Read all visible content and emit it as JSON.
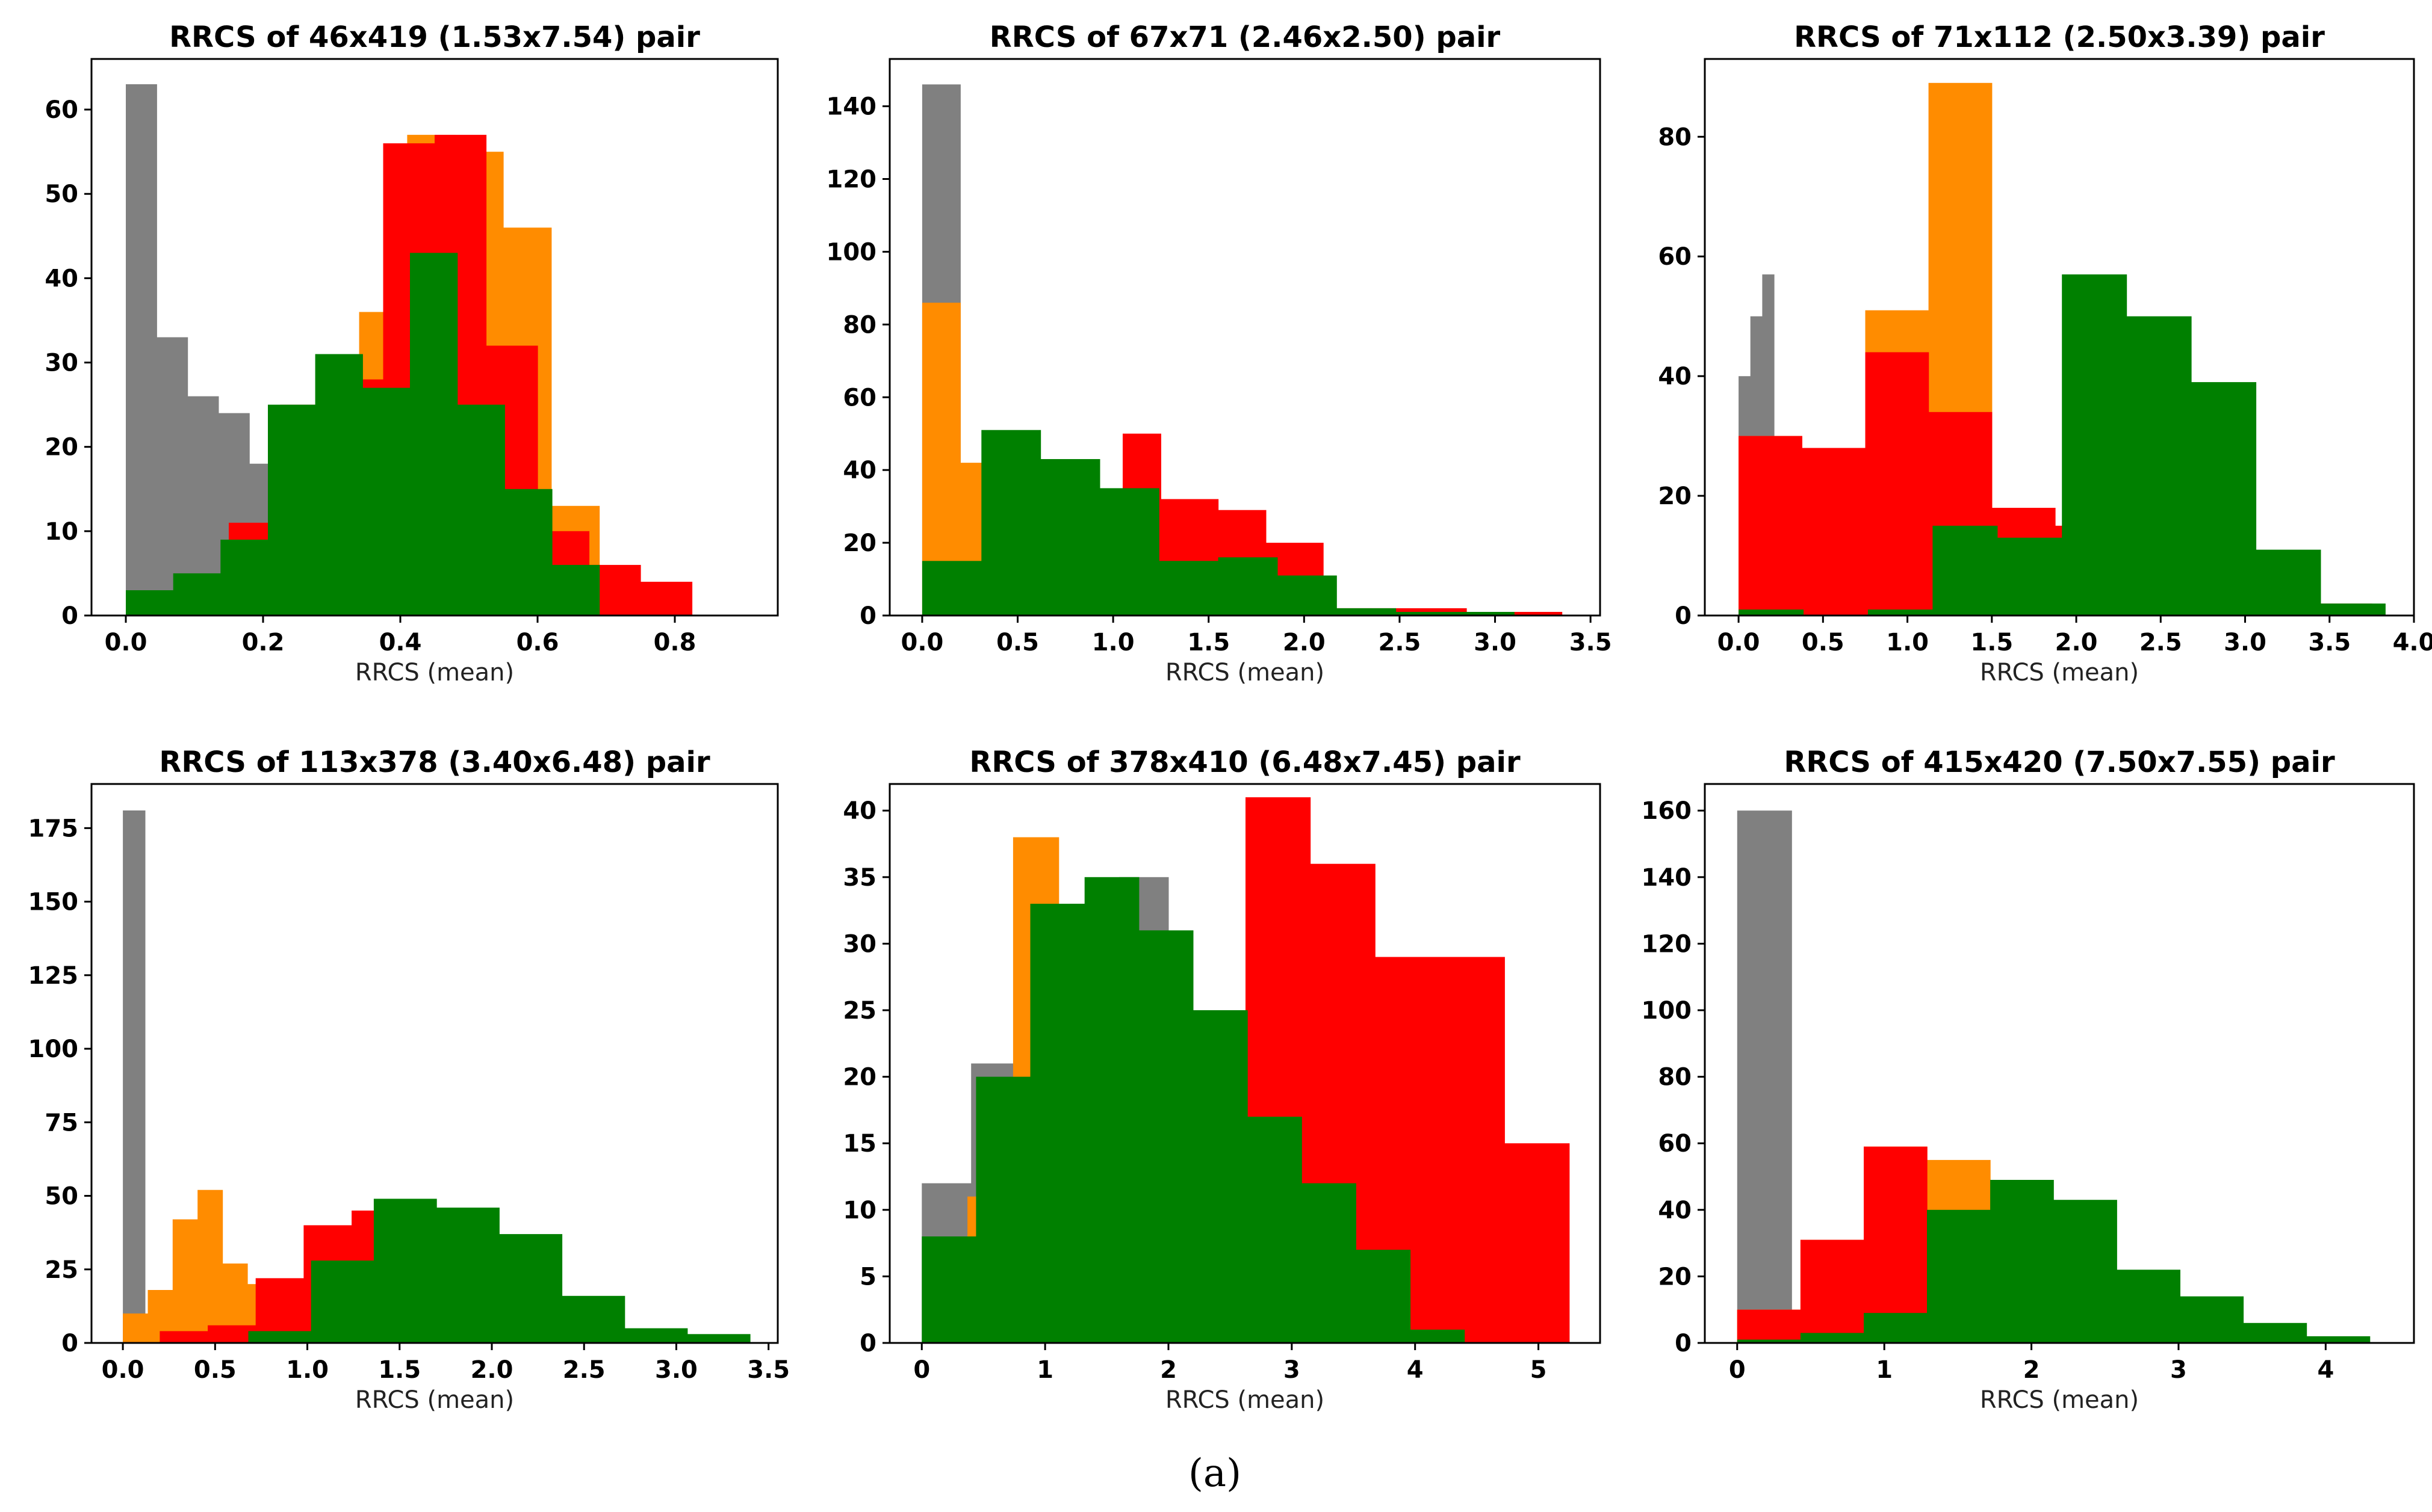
{
  "figure_caption": "(a)",
  "colors": {
    "gray": "#808080",
    "orange": "#ff8c00",
    "red": "#ff0000",
    "green": "#008000"
  },
  "chart_data": [
    {
      "type": "bar",
      "title": "RRCS of 46x419 (1.53x7.54) pair",
      "xlabel": "RRCS (mean)",
      "ylabel": "",
      "xlim": [
        -0.05,
        0.95
      ],
      "ylim": [
        0,
        66
      ],
      "xticks": [
        0.0,
        0.2,
        0.4,
        0.6,
        0.8
      ],
      "xtick_labels": [
        "0.0",
        "0.2",
        "0.4",
        "0.6",
        "0.8"
      ],
      "yticks": [
        0,
        10,
        20,
        30,
        40,
        50,
        60
      ],
      "ytick_labels": [
        "0",
        "10",
        "20",
        "30",
        "40",
        "50",
        "60"
      ],
      "series": [
        {
          "name": "gray",
          "color_key": "gray",
          "edges": [
            0.0,
            0.045,
            0.09,
            0.135,
            0.18,
            0.225,
            0.27,
            0.315,
            0.36,
            0.405,
            0.45
          ],
          "values": [
            63,
            33,
            26,
            24,
            18,
            10,
            5,
            3,
            1,
            0
          ]
        },
        {
          "name": "orange",
          "color_key": "orange",
          "edges": [
            0.2,
            0.27,
            0.34,
            0.41,
            0.48,
            0.55,
            0.62,
            0.69
          ],
          "values": [
            2,
            15,
            36,
            57,
            55,
            46,
            13
          ]
        },
        {
          "name": "red",
          "color_key": "red",
          "edges": [
            0.15,
            0.225,
            0.3,
            0.375,
            0.45,
            0.525,
            0.6,
            0.675,
            0.75,
            0.825,
            0.9
          ],
          "values": [
            11,
            25,
            28,
            56,
            57,
            32,
            10,
            6,
            4,
            0
          ]
        },
        {
          "name": "green",
          "color_key": "green",
          "edges": [
            0.0,
            0.069,
            0.138,
            0.207,
            0.276,
            0.345,
            0.414,
            0.483,
            0.552,
            0.621,
            0.69
          ],
          "values": [
            3,
            5,
            9,
            25,
            31,
            27,
            43,
            25,
            15,
            6
          ]
        }
      ]
    },
    {
      "type": "bar",
      "title": "RRCS of 67x71 (2.46x2.50) pair",
      "xlabel": "RRCS (mean)",
      "ylabel": "",
      "xlim": [
        -0.17,
        3.55
      ],
      "ylim": [
        0,
        153
      ],
      "xticks": [
        0.0,
        0.5,
        1.0,
        1.5,
        2.0,
        2.5,
        3.0,
        3.5
      ],
      "xtick_labels": [
        "0.0",
        "0.5",
        "1.0",
        "1.5",
        "2.0",
        "2.5",
        "3.0",
        "3.5"
      ],
      "yticks": [
        0,
        20,
        40,
        60,
        80,
        100,
        120,
        140
      ],
      "ytick_labels": [
        "0",
        "20",
        "40",
        "60",
        "80",
        "100",
        "120",
        "140"
      ],
      "series": [
        {
          "name": "gray",
          "color_key": "gray",
          "edges": [
            0.0,
            0.2,
            0.4,
            0.6
          ],
          "values": [
            146,
            1,
            0
          ]
        },
        {
          "name": "orange",
          "color_key": "orange",
          "edges": [
            0.0,
            0.2,
            0.4,
            0.6,
            0.8,
            1.0
          ],
          "values": [
            86,
            42,
            4,
            2,
            0
          ]
        },
        {
          "name": "red",
          "color_key": "red",
          "edges": [
            0.0,
            0.1,
            0.55,
            0.85,
            1.05,
            1.25,
            1.55,
            1.8,
            2.1,
            2.35,
            2.85,
            3.35
          ],
          "values": [
            0,
            0,
            0,
            0,
            50,
            32,
            29,
            20,
            2,
            2,
            1
          ]
        },
        {
          "name": "green",
          "color_key": "green",
          "edges": [
            0.0,
            0.31,
            0.62,
            0.93,
            1.24,
            1.55,
            1.86,
            2.17,
            2.48,
            2.79,
            3.1
          ],
          "values": [
            15,
            51,
            43,
            35,
            15,
            16,
            11,
            2,
            1,
            1
          ]
        }
      ]
    },
    {
      "type": "bar",
      "title": "RRCS of 71x112 (2.50x3.39) pair",
      "xlabel": "RRCS (mean)",
      "ylabel": "",
      "xlim": [
        -0.2,
        4.0
      ],
      "ylim": [
        0,
        93
      ],
      "xticks": [
        0.0,
        0.5,
        1.0,
        1.5,
        2.0,
        2.5,
        3.0,
        3.5,
        4.0
      ],
      "xtick_labels": [
        "0.0",
        "0.5",
        "1.0",
        "1.5",
        "2.0",
        "2.5",
        "3.0",
        "3.5",
        "4.0"
      ],
      "yticks": [
        0,
        20,
        40,
        60,
        80
      ],
      "ytick_labels": [
        "0",
        "20",
        "40",
        "60",
        "80"
      ],
      "series": [
        {
          "name": "gray",
          "color_key": "gray",
          "edges": [
            0.0,
            0.07,
            0.14,
            0.21
          ],
          "values": [
            40,
            50,
            57
          ]
        },
        {
          "name": "orange",
          "color_key": "orange",
          "edges": [
            0.0,
            0.375,
            0.75,
            1.125,
            1.5,
            1.875
          ],
          "values": [
            30,
            28,
            51,
            89,
            15
          ]
        },
        {
          "name": "red",
          "color_key": "red",
          "edges": [
            0.0,
            0.375,
            0.75,
            1.125,
            1.5,
            1.875,
            2.25,
            2.625,
            3.0,
            3.375,
            3.75
          ],
          "values": [
            30,
            28,
            44,
            34,
            18,
            15,
            0,
            0,
            2,
            2
          ]
        },
        {
          "name": "green",
          "color_key": "green",
          "edges": [
            0.0,
            0.383,
            0.766,
            1.149,
            1.532,
            1.915,
            2.298,
            2.681,
            3.064,
            3.447,
            3.83
          ],
          "values": [
            1,
            0,
            1,
            15,
            13,
            57,
            50,
            39,
            11,
            2
          ]
        }
      ]
    },
    {
      "type": "bar",
      "title": "RRCS of 113x378 (3.40x6.48) pair",
      "xlabel": "RRCS (mean)",
      "ylabel": "",
      "xlim": [
        -0.17,
        3.55
      ],
      "ylim": [
        0,
        190
      ],
      "xticks": [
        0.0,
        0.5,
        1.0,
        1.5,
        2.0,
        2.5,
        3.0,
        3.5
      ],
      "xtick_labels": [
        "0.0",
        "0.5",
        "1.0",
        "1.5",
        "2.0",
        "2.5",
        "3.0",
        "3.5"
      ],
      "yticks": [
        0,
        25,
        50,
        75,
        100,
        125,
        150,
        175
      ],
      "ytick_labels": [
        "0",
        "25",
        "50",
        "75",
        "100",
        "125",
        "150",
        "175"
      ],
      "series": [
        {
          "name": "gray",
          "color_key": "gray",
          "edges": [
            0.0,
            0.12,
            0.24
          ],
          "values": [
            181,
            0
          ]
        },
        {
          "name": "orange",
          "color_key": "orange",
          "edges": [
            0.0,
            0.135,
            0.27,
            0.405,
            0.54,
            0.675,
            0.81,
            0.945
          ],
          "values": [
            10,
            18,
            42,
            52,
            27,
            20,
            0
          ]
        },
        {
          "name": "red",
          "color_key": "red",
          "edges": [
            0.2,
            0.46,
            0.72,
            0.98,
            1.24,
            1.5
          ],
          "values": [
            4,
            6,
            22,
            40,
            45
          ]
        },
        {
          "name": "green",
          "color_key": "green",
          "edges": [
            0.0,
            0.34,
            0.68,
            1.02,
            1.36,
            1.7,
            2.04,
            2.38,
            2.72,
            3.06,
            3.4
          ],
          "values": [
            0,
            0,
            4,
            28,
            49,
            46,
            37,
            16,
            5,
            3
          ]
        }
      ]
    },
    {
      "type": "bar",
      "title": "RRCS of 378x410 (6.48x7.45) pair",
      "xlabel": "RRCS (mean)",
      "ylabel": "",
      "xlim": [
        -0.26,
        5.5
      ],
      "ylim": [
        0,
        42
      ],
      "xticks": [
        0,
        1,
        2,
        3,
        4,
        5
      ],
      "xtick_labels": [
        "0",
        "1",
        "2",
        "3",
        "4",
        "5"
      ],
      "yticks": [
        0,
        5,
        10,
        15,
        20,
        25,
        30,
        35,
        40
      ],
      "ytick_labels": [
        "0",
        "5",
        "10",
        "15",
        "20",
        "25",
        "30",
        "35",
        "40"
      ],
      "series": [
        {
          "name": "gray",
          "color_key": "gray",
          "edges": [
            0.0,
            0.4,
            0.8,
            1.2,
            1.6,
            2.0
          ],
          "values": [
            12,
            21,
            20,
            33,
            35
          ]
        },
        {
          "name": "orange",
          "color_key": "orange",
          "edges": [
            0.0,
            0.37,
            0.74,
            1.11
          ],
          "values": [
            0,
            11,
            38
          ]
        },
        {
          "name": "red",
          "color_key": "red",
          "edges": [
            0.0,
            0.525,
            1.05,
            1.575,
            2.1,
            2.625,
            3.15,
            3.675,
            4.2,
            4.725,
            5.25
          ],
          "values": [
            0,
            0,
            0,
            0,
            0,
            41,
            36,
            29,
            29,
            15
          ]
        },
        {
          "name": "green",
          "color_key": "green",
          "edges": [
            0.0,
            0.44,
            0.88,
            1.32,
            1.76,
            2.2,
            2.64,
            3.08,
            3.52,
            3.96,
            4.4
          ],
          "values": [
            8,
            20,
            33,
            35,
            31,
            25,
            17,
            12,
            7,
            1
          ]
        }
      ]
    },
    {
      "type": "bar",
      "title": "RRCS of 415x420 (7.50x7.55) pair",
      "xlabel": "RRCS (mean)",
      "ylabel": "",
      "xlim": [
        -0.22,
        4.6
      ],
      "ylim": [
        0,
        168
      ],
      "xticks": [
        0,
        1,
        2,
        3,
        4
      ],
      "xtick_labels": [
        "0",
        "1",
        "2",
        "3",
        "4"
      ],
      "yticks": [
        0,
        20,
        40,
        60,
        80,
        100,
        120,
        140,
        160
      ],
      "ytick_labels": [
        "0",
        "20",
        "40",
        "60",
        "80",
        "100",
        "120",
        "140",
        "160"
      ],
      "series": [
        {
          "name": "gray",
          "color_key": "gray",
          "edges": [
            0.0,
            0.37,
            0.74
          ],
          "values": [
            160,
            0
          ]
        },
        {
          "name": "orange",
          "color_key": "orange",
          "edges": [
            0.0,
            0.43,
            0.86,
            1.29,
            1.72,
            2.15
          ],
          "values": [
            10,
            31,
            59,
            55,
            43
          ]
        },
        {
          "name": "red",
          "color_key": "red",
          "edges": [
            0.0,
            0.43,
            0.86,
            1.29,
            1.72,
            2.15
          ],
          "values": [
            10,
            31,
            59,
            38,
            0
          ]
        },
        {
          "name": "green",
          "color_key": "green",
          "edges": [
            0.0,
            0.43,
            0.86,
            1.29,
            1.72,
            2.15,
            2.58,
            3.01,
            3.44,
            3.87,
            4.3
          ],
          "values": [
            1,
            3,
            9,
            40,
            49,
            43,
            22,
            14,
            6,
            2
          ]
        }
      ]
    }
  ]
}
